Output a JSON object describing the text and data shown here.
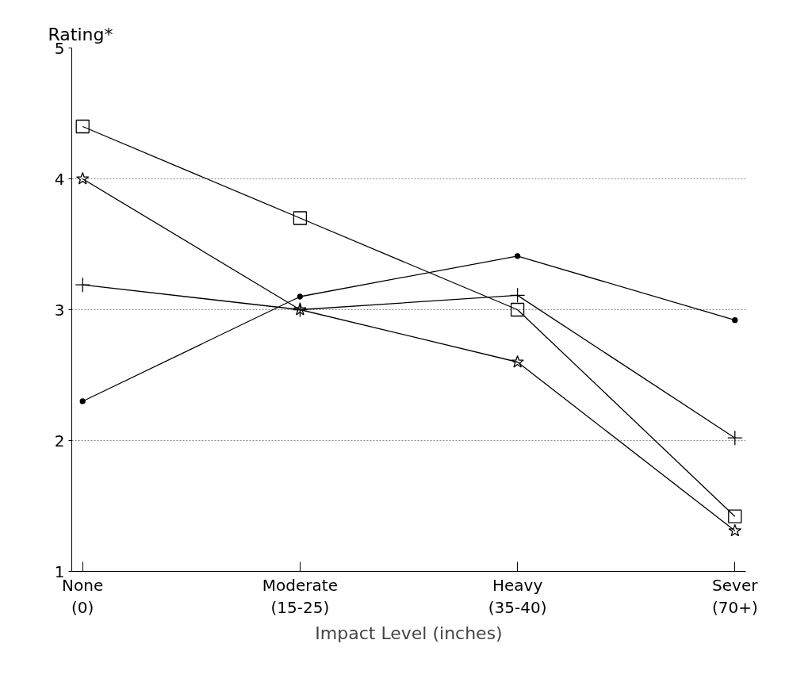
{
  "chart_data": {
    "type": "line",
    "ylabel": "Rating*",
    "xlabel": "Impact Level (inches)",
    "categories": [
      "None\n(0)",
      "Moderate\n(15-25)",
      "Heavy\n(35-40)",
      "Sever\n(70+)"
    ],
    "series": [
      {
        "color": "#000000",
        "marker": "square",
        "values": [
          4.4,
          3.7,
          3.0,
          1.42
        ]
      },
      {
        "color": "#000000",
        "marker": "star",
        "values": [
          4.0,
          3.0,
          2.6,
          1.31
        ]
      },
      {
        "color": "#000000",
        "marker": "circle",
        "values": [
          2.3,
          3.1,
          3.41,
          2.92
        ]
      },
      {
        "color": "#000000",
        "marker": "cross",
        "values": [
          3.19,
          3.0,
          3.11,
          2.02
        ]
      }
    ],
    "ylim": [
      1,
      5
    ],
    "yticks": [
      1,
      2,
      3,
      4,
      5
    ],
    "grid": "y",
    "line_style": "solid"
  }
}
